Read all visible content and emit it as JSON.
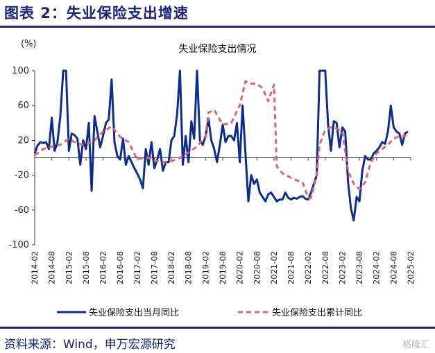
{
  "figure_title": "图表 2：失业保险支出增速",
  "unit_label": "(%)",
  "source_text": "资料来源：Wind，申万宏源研究",
  "watermark_text": "格隆汇",
  "colors": {
    "monthly": "#0d2c91",
    "cumulative": "#e0646c",
    "accent": "#1a237e"
  },
  "chart_data": {
    "type": "line",
    "title": "失业保险支出情况",
    "xlabel": "",
    "ylabel": "(%)",
    "ylim": [
      -100,
      100
    ],
    "yticks": [
      -100,
      -60,
      -20,
      20,
      60,
      100
    ],
    "grid": false,
    "legend_position": "bottom",
    "x_ticks": [
      "2014-02",
      "2014-08",
      "2015-02",
      "2015-08",
      "2016-02",
      "2016-08",
      "2017-02",
      "2017-08",
      "2018-02",
      "2018-08",
      "2019-02",
      "2019-08",
      "2020-02",
      "2020-08",
      "2021-02",
      "2021-08",
      "2022-02",
      "2022-08",
      "2023-02",
      "2023-08",
      "2024-02",
      "2024-08",
      "2025-02"
    ],
    "series": [
      {
        "name": "失业保险支出当月同比",
        "style": "solid",
        "points": [
          [
            "2014-02",
            5
          ],
          [
            "2014-03",
            14
          ],
          [
            "2014-04",
            18
          ],
          [
            "2014-05",
            17
          ],
          [
            "2014-06",
            18
          ],
          [
            "2014-07",
            10
          ],
          [
            "2014-08",
            46
          ],
          [
            "2014-09",
            8
          ],
          [
            "2014-10",
            18
          ],
          [
            "2014-11",
            48
          ],
          [
            "2014-12",
            100
          ],
          [
            "2015-01",
            100
          ],
          [
            "2015-02",
            8
          ],
          [
            "2015-03",
            28
          ],
          [
            "2015-04",
            26
          ],
          [
            "2015-05",
            22
          ],
          [
            "2015-06",
            -8
          ],
          [
            "2015-07",
            20
          ],
          [
            "2015-08",
            10
          ],
          [
            "2015-09",
            40
          ],
          [
            "2015-10",
            -38
          ],
          [
            "2015-11",
            48
          ],
          [
            "2015-12",
            30
          ],
          [
            "2016-01",
            12
          ],
          [
            "2016-02",
            25
          ],
          [
            "2016-03",
            40
          ],
          [
            "2016-04",
            44
          ],
          [
            "2016-05",
            90
          ],
          [
            "2016-06",
            18
          ],
          [
            "2016-07",
            2
          ],
          [
            "2016-08",
            -2
          ],
          [
            "2016-09",
            22
          ],
          [
            "2016-10",
            -8
          ],
          [
            "2016-11",
            2
          ],
          [
            "2016-12",
            -5
          ],
          [
            "2017-01",
            -12
          ],
          [
            "2017-02",
            -18
          ],
          [
            "2017-03",
            -25
          ],
          [
            "2017-04",
            -35
          ],
          [
            "2017-05",
            10
          ],
          [
            "2017-06",
            -8
          ],
          [
            "2017-07",
            18
          ],
          [
            "2017-08",
            -12
          ],
          [
            "2017-09",
            -2
          ],
          [
            "2017-10",
            10
          ],
          [
            "2017-11",
            -15
          ],
          [
            "2017-12",
            -5
          ],
          [
            "2018-01",
            -5
          ],
          [
            "2018-02",
            20
          ],
          [
            "2018-03",
            25
          ],
          [
            "2018-04",
            50
          ],
          [
            "2018-05",
            100
          ],
          [
            "2018-06",
            -8
          ],
          [
            "2018-07",
            25
          ],
          [
            "2018-08",
            -5
          ],
          [
            "2018-09",
            42
          ],
          [
            "2018-10",
            22
          ],
          [
            "2018-11",
            100
          ],
          [
            "2018-12",
            20
          ],
          [
            "2019-01",
            15
          ],
          [
            "2019-02",
            25
          ],
          [
            "2019-03",
            45
          ],
          [
            "2019-04",
            20
          ],
          [
            "2019-05",
            10
          ],
          [
            "2019-06",
            -5
          ],
          [
            "2019-07",
            15
          ],
          [
            "2019-08",
            38
          ],
          [
            "2019-09",
            18
          ],
          [
            "2019-10",
            25
          ],
          [
            "2019-11",
            25
          ],
          [
            "2019-12",
            20
          ],
          [
            "2020-01",
            40
          ],
          [
            "2020-02",
            -5
          ],
          [
            "2020-03",
            60
          ],
          [
            "2020-04",
            5
          ],
          [
            "2020-05",
            -50
          ],
          [
            "2020-06",
            -20
          ],
          [
            "2020-07",
            -30
          ],
          [
            "2020-08",
            -25
          ],
          [
            "2020-09",
            -40
          ],
          [
            "2020-10",
            -45
          ],
          [
            "2020-11",
            -50
          ],
          [
            "2020-12",
            -42
          ],
          [
            "2021-01",
            -40
          ],
          [
            "2021-02",
            -45
          ],
          [
            "2021-03",
            -50
          ],
          [
            "2021-04",
            -48
          ],
          [
            "2021-05",
            -48
          ],
          [
            "2021-06",
            -40
          ],
          [
            "2021-07",
            -46
          ],
          [
            "2021-08",
            -48
          ],
          [
            "2021-09",
            -46
          ],
          [
            "2021-10",
            -47
          ],
          [
            "2021-11",
            -45
          ],
          [
            "2021-12",
            -44
          ],
          [
            "2022-01",
            -47
          ],
          [
            "2022-02",
            -48
          ],
          [
            "2022-03",
            -40
          ],
          [
            "2022-04",
            -30
          ],
          [
            "2022-05",
            -20
          ],
          [
            "2022-06",
            100
          ],
          [
            "2022-07",
            100
          ],
          [
            "2022-08",
            100
          ],
          [
            "2022-09",
            38
          ],
          [
            "2022-10",
            8
          ],
          [
            "2022-11",
            42
          ],
          [
            "2022-12",
            40
          ],
          [
            "2023-01",
            12
          ],
          [
            "2023-02",
            35
          ],
          [
            "2023-03",
            30
          ],
          [
            "2023-04",
            -28
          ],
          [
            "2023-05",
            -58
          ],
          [
            "2023-06",
            -72
          ],
          [
            "2023-07",
            -45
          ],
          [
            "2023-08",
            -50
          ],
          [
            "2023-09",
            -15
          ],
          [
            "2023-10",
            2
          ],
          [
            "2023-11",
            -2
          ],
          [
            "2023-12",
            -2
          ],
          [
            "2024-01",
            5
          ],
          [
            "2024-02",
            8
          ],
          [
            "2024-03",
            12
          ],
          [
            "2024-04",
            18
          ],
          [
            "2024-05",
            16
          ],
          [
            "2024-06",
            30
          ],
          [
            "2024-07",
            60
          ],
          [
            "2024-08",
            35
          ],
          [
            "2024-09",
            30
          ],
          [
            "2024-10",
            28
          ],
          [
            "2024-11",
            15
          ],
          [
            "2024-12",
            28
          ],
          [
            "2025-01",
            30
          ]
        ]
      },
      {
        "name": "失业保险支出累计同比",
        "style": "dashed",
        "points": [
          [
            "2014-02",
            3
          ],
          [
            "2014-05",
            10
          ],
          [
            "2014-08",
            13
          ],
          [
            "2014-11",
            15
          ],
          [
            "2015-02",
            22
          ],
          [
            "2015-05",
            16
          ],
          [
            "2015-08",
            15
          ],
          [
            "2015-11",
            20
          ],
          [
            "2016-02",
            30
          ],
          [
            "2016-05",
            36
          ],
          [
            "2016-08",
            24
          ],
          [
            "2016-11",
            18
          ],
          [
            "2017-02",
            -2
          ],
          [
            "2017-05",
            1
          ],
          [
            "2017-08",
            -3
          ],
          [
            "2017-11",
            -5
          ],
          [
            "2018-02",
            -4
          ],
          [
            "2018-05",
            0
          ],
          [
            "2018-08",
            6
          ],
          [
            "2018-11",
            13
          ],
          [
            "2019-02",
            25
          ],
          [
            "2019-03",
            52
          ],
          [
            "2019-05",
            55
          ],
          [
            "2019-08",
            38
          ],
          [
            "2019-11",
            40
          ],
          [
            "2020-02",
            60
          ],
          [
            "2020-04",
            88
          ],
          [
            "2020-06",
            85
          ],
          [
            "2020-08",
            85
          ],
          [
            "2020-10",
            80
          ],
          [
            "2020-12",
            65
          ],
          [
            "2021-02",
            84
          ],
          [
            "2021-03",
            -10
          ],
          [
            "2021-05",
            -18
          ],
          [
            "2021-08",
            -23
          ],
          [
            "2021-10",
            -26
          ],
          [
            "2021-12",
            -28
          ],
          [
            "2022-02",
            -46
          ],
          [
            "2022-03",
            -46
          ],
          [
            "2022-05",
            -20
          ],
          [
            "2022-06",
            15
          ],
          [
            "2022-08",
            32
          ],
          [
            "2022-10",
            35
          ],
          [
            "2022-12",
            34
          ],
          [
            "2023-02",
            30
          ],
          [
            "2023-04",
            -15
          ],
          [
            "2023-06",
            -30
          ],
          [
            "2023-08",
            -36
          ],
          [
            "2023-10",
            -28
          ],
          [
            "2023-12",
            -5
          ],
          [
            "2024-02",
            5
          ],
          [
            "2024-04",
            10
          ],
          [
            "2024-06",
            15
          ],
          [
            "2024-08",
            22
          ],
          [
            "2024-10",
            25
          ],
          [
            "2024-12",
            25
          ],
          [
            "2025-01",
            30
          ]
        ]
      }
    ]
  }
}
